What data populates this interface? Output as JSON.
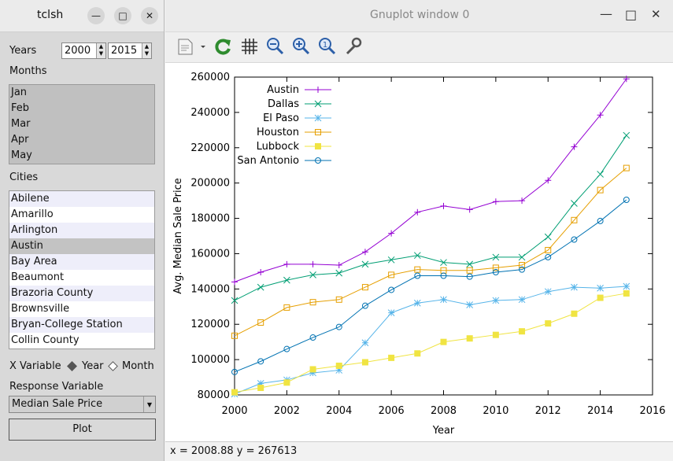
{
  "tcl": {
    "title": "tclsh",
    "years_label": "Years",
    "year_from": "2000",
    "year_to": "2015",
    "months_label": "Months",
    "months": [
      "Jan",
      "Feb",
      "Mar",
      "Apr",
      "May"
    ],
    "cities_label": "Cities",
    "cities": [
      "Abilene",
      "Amarillo",
      "Arlington",
      "Austin",
      "Bay Area",
      "Beaumont",
      "Brazoria County",
      "Brownsville",
      "Bryan-College Station",
      "Collin County"
    ],
    "selected_city": "Austin",
    "xvar_label": "X Variable",
    "xvar_options": [
      "Year",
      "Month"
    ],
    "xvar_selected": "Year",
    "response_label": "Response Variable",
    "response_value": "Median Sale Price",
    "plot_button": "Plot"
  },
  "gnuplot": {
    "title": "Gnuplot window 0",
    "status": "x = 2008.88 y = 267613",
    "toolbar_icons": [
      "export-icon",
      "replot-icon",
      "grid-icon",
      "zoom-out-icon",
      "zoom-in-icon",
      "zoom-reset-icon",
      "settings-wrench-icon"
    ]
  },
  "chart_data": {
    "type": "line",
    "title": "",
    "xlabel": "Year",
    "ylabel": "Avg. Median Sale Price",
    "xlim": [
      2000,
      2016
    ],
    "ylim": [
      80000,
      260000
    ],
    "xticks": [
      "2000",
      "2002",
      "2004",
      "2006",
      "2008",
      "2010",
      "2012",
      "2014",
      "2016"
    ],
    "yticks": [
      "80000",
      "100000",
      "120000",
      "140000",
      "160000",
      "180000",
      "200000",
      "220000",
      "240000",
      "260000"
    ],
    "legend_position": "top-left",
    "grid": false,
    "x": [
      2000,
      2001,
      2002,
      2003,
      2004,
      2005,
      2006,
      2007,
      2008,
      2009,
      2010,
      2011,
      2012,
      2013,
      2014,
      2015
    ],
    "series": [
      {
        "name": "Austin",
        "color": "#9400d3",
        "marker": "plus",
        "values": [
          144000,
          149500,
          154000,
          154000,
          153500,
          161000,
          171500,
          183500,
          187000,
          185000,
          189500,
          190000,
          201500,
          220500,
          238500,
          259000
        ]
      },
      {
        "name": "Dallas",
        "color": "#009e73",
        "marker": "cross",
        "values": [
          133500,
          141000,
          145000,
          148000,
          149000,
          154000,
          156500,
          159000,
          155000,
          154000,
          158000,
          158000,
          169500,
          188500,
          205000,
          227000
        ]
      },
      {
        "name": "El Paso",
        "color": "#56b4e9",
        "marker": "star",
        "values": [
          80500,
          86500,
          88500,
          92500,
          94000,
          109500,
          126500,
          132000,
          134000,
          131000,
          133500,
          134000,
          138500,
          141000,
          140500,
          141500
        ]
      },
      {
        "name": "Houston",
        "color": "#e69f00",
        "marker": "square",
        "values": [
          113500,
          121000,
          129500,
          132500,
          134000,
          141000,
          148000,
          151000,
          150500,
          150500,
          152000,
          153500,
          162000,
          179000,
          196000,
          208500
        ]
      },
      {
        "name": "Lubbock",
        "color": "#f0e442",
        "marker": "filled-square",
        "values": [
          81500,
          84000,
          87000,
          94500,
          96500,
          98500,
          101000,
          103500,
          110000,
          112000,
          114000,
          116000,
          120500,
          126000,
          135000,
          137500
        ]
      },
      {
        "name": "San Antonio",
        "color": "#0072b2",
        "marker": "circle",
        "values": [
          93000,
          99000,
          106000,
          112500,
          118500,
          130500,
          139500,
          147500,
          147500,
          147000,
          149500,
          151000,
          158000,
          168000,
          178500,
          190500
        ]
      }
    ]
  }
}
